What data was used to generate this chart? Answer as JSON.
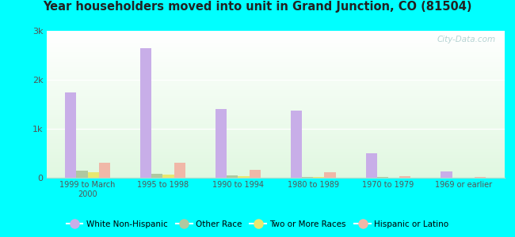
{
  "title": "Year householders moved into unit in Grand Junction, CO (81504)",
  "categories": [
    "1999 to March\n2000",
    "1995 to 1998",
    "1990 to 1994",
    "1980 to 1989",
    "1970 to 1979",
    "1969 or earlier"
  ],
  "series": {
    "White Non-Hispanic": [
      1750,
      2650,
      1400,
      1370,
      500,
      130
    ],
    "Other Race": [
      145,
      80,
      55,
      20,
      10,
      5
    ],
    "Two or More Races": [
      110,
      60,
      30,
      10,
      5,
      5
    ],
    "Hispanic or Latino": [
      310,
      310,
      155,
      120,
      35,
      15
    ]
  },
  "colors": {
    "White Non-Hispanic": "#c8aee8",
    "Other Race": "#b0c8a0",
    "Two or More Races": "#e8e870",
    "Hispanic or Latino": "#f0b8a8"
  },
  "ylim": [
    0,
    3000
  ],
  "yticks": [
    0,
    1000,
    2000,
    3000
  ],
  "ytick_labels": [
    "0",
    "1k",
    "2k",
    "3k"
  ],
  "bg_color": "#00FFFF",
  "watermark": "City-Data.com",
  "bar_width": 0.15
}
